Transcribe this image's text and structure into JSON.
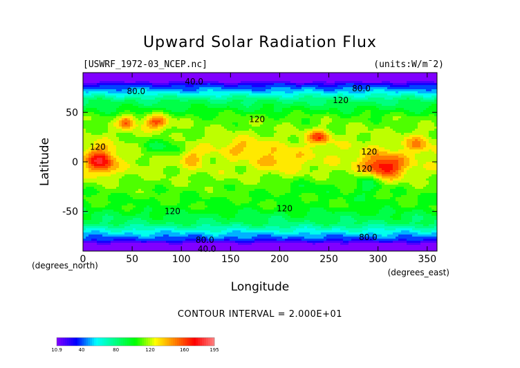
{
  "chart_data": {
    "type": "heatmap",
    "title": "Upward Solar Radiation Flux",
    "file_label": "[USWRF_1972-03_NCEP.nc]",
    "units_label": "(units:W/m¯2)",
    "xlabel": "Longitude",
    "ylabel": "Latitude",
    "x_unit_label": "(degrees_east)",
    "y_unit_label": "(degrees_north)",
    "xlim": [
      0,
      360
    ],
    "ylim": [
      -90,
      90
    ],
    "x_ticks": [
      0,
      50,
      100,
      150,
      200,
      250,
      300,
      350
    ],
    "y_ticks": [
      -50,
      0,
      50
    ],
    "contour_interval_text": "CONTOUR INTERVAL = 2.000E+01",
    "contour_interval": 20,
    "colorbar": {
      "min": 10.9,
      "max": 195,
      "tick_labels": [
        "10.9",
        "40",
        "80",
        "120",
        "160",
        "195"
      ],
      "tick_values": [
        10.9,
        40,
        80,
        120,
        160,
        195
      ],
      "colors": [
        "#8000ff",
        "#0000ff",
        "#00ffff",
        "#00ff80",
        "#00ff00",
        "#ffff00",
        "#ff8000",
        "#ff0000",
        "#ff8080"
      ]
    },
    "contour_labels": [
      {
        "text": "40.0",
        "lon": 113,
        "lat": 81
      },
      {
        "text": "80.0",
        "lon": 54,
        "lat": 71
      },
      {
        "text": "80.0",
        "lon": 283,
        "lat": 74
      },
      {
        "text": "120",
        "lon": 262,
        "lat": 62
      },
      {
        "text": "120",
        "lon": 177,
        "lat": 43
      },
      {
        "text": "120",
        "lon": 15,
        "lat": 15
      },
      {
        "text": "120",
        "lon": 291,
        "lat": 10
      },
      {
        "text": "120",
        "lon": 286,
        "lat": -7
      },
      {
        "text": "120",
        "lon": 91,
        "lat": -50
      },
      {
        "text": "120",
        "lon": 205,
        "lat": -47
      },
      {
        "text": "80.0",
        "lon": 124,
        "lat": -79
      },
      {
        "text": "80.0",
        "lon": 290,
        "lat": -76
      },
      {
        "text": "40.0",
        "lon": 126,
        "lat": -88
      }
    ]
  }
}
